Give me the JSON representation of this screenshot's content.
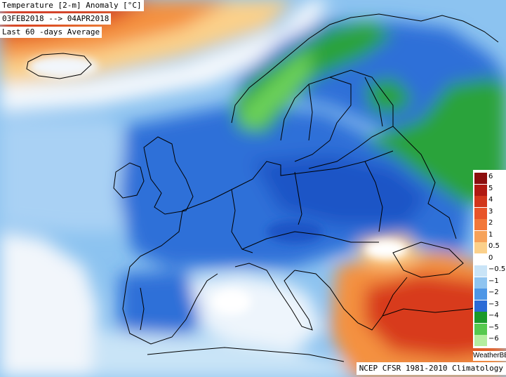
{
  "header": {
    "line1": "Temperature [2-m] Anomaly  [°C]",
    "line2": "03FEB2018 --> 04APR2018",
    "line3": "Last 60 -days Average"
  },
  "legend": {
    "ticks": [
      "6",
      "5",
      "4",
      "3",
      "2",
      "1",
      "0.5",
      "0",
      "−0.5",
      "−1",
      "−2",
      "−3",
      "−4",
      "−5",
      "−6"
    ],
    "colors": [
      "#8b0e0e",
      "#b01a12",
      "#d2371c",
      "#e8552a",
      "#f2783a",
      "#f6a25a",
      "#fbd08a",
      "#ffffff",
      "#c9e4f7",
      "#8fc4f0",
      "#4e96e6",
      "#2c6bd6",
      "#1b9a2a",
      "#56c94f",
      "#b4ee9f"
    ]
  },
  "brand": "WeatherBELL",
  "credit": "NCEP CFSR 1981-2010 Climatology",
  "palette": {
    "warm_strong": "#d83a1c",
    "warm": "#f4913f",
    "warm_light": "#fbd08a",
    "neutral": "#ffffff",
    "cool_light": "#a9d1f4",
    "cool": "#5aa0ea",
    "cold": "#2e6fd8",
    "cold_deep": "#1e55c6",
    "green_cold": "#2aa33a",
    "green_light": "#6cd15a",
    "boundary": "#000000"
  }
}
